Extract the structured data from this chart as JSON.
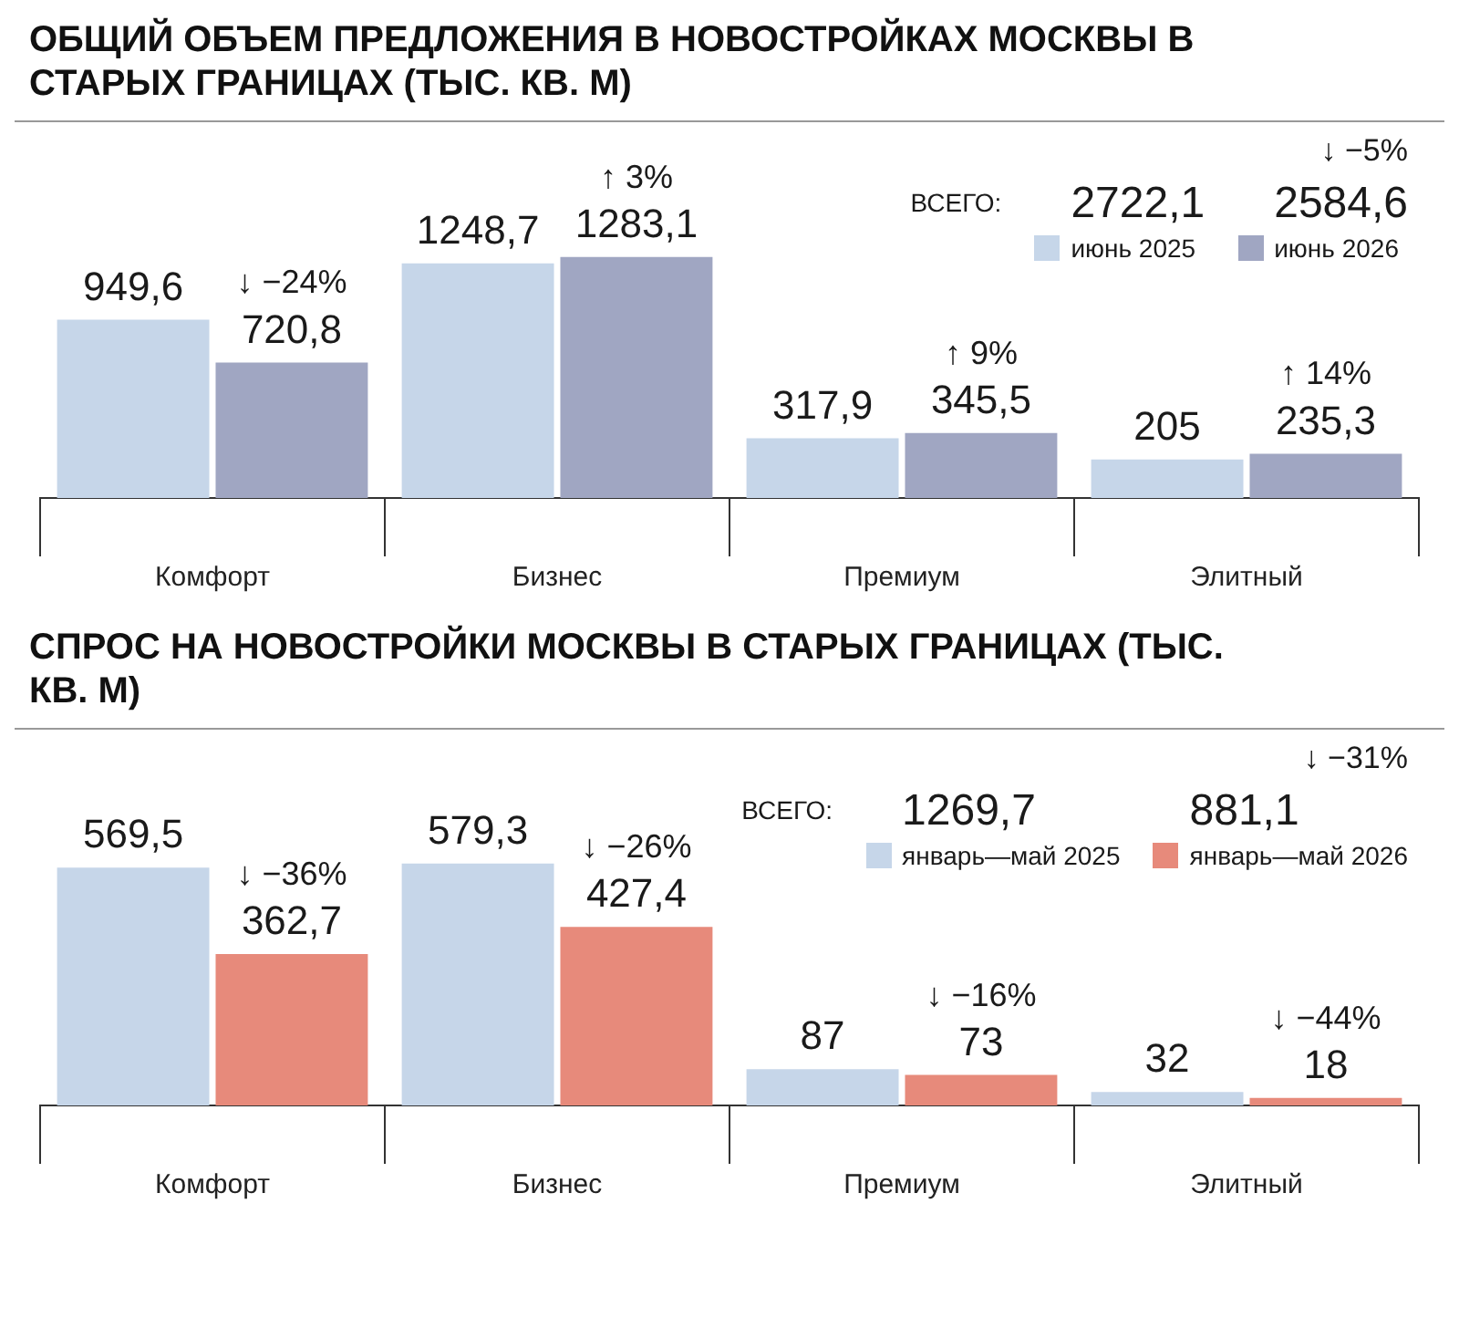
{
  "chart_data": [
    {
      "type": "bar",
      "title": "ОБЩИЙ ОБЪЕМ ПРЕДЛОЖЕНИЯ В НОВОСТРОЙКАХ МОСКВЫ В СТАРЫХ ГРАНИЦАХ (ТЫС. КВ. М)",
      "categories": [
        "Комфорт",
        "Бизнес",
        "Премиум",
        "Элитный"
      ],
      "series": [
        {
          "name": "июнь 2025",
          "color": "#c6d6e9",
          "values": [
            949.6,
            1248.7,
            317.9,
            205
          ],
          "value_labels": [
            "949,6",
            "1248,7",
            "317,9",
            "205"
          ]
        },
        {
          "name": "июнь 2026",
          "color": "#a0a6c2",
          "values": [
            720.8,
            1283.1,
            345.5,
            235.3
          ],
          "value_labels": [
            "720,8",
            "1283,1",
            "345,5",
            "235,3"
          ]
        }
      ],
      "annotations": [
        "ВСЕГО:",
        "2722,1",
        "2584,6",
        "↓ −5%",
        {
          "text": "↓ −24%",
          "x": "Комфорт",
          "y": 720.8
        },
        {
          "text": "↑ 3%",
          "x": "Бизнес",
          "y": 1283.1
        },
        {
          "text": "↑ 9%",
          "x": "Премиум",
          "y": 345.5
        },
        {
          "text": "↑ 14%",
          "x": "Элитный",
          "y": 235.3
        }
      ],
      "grid": false,
      "legend": "top right",
      "tick_labels": "x"
    },
    {
      "type": "bar",
      "title": "СПРОС НА НОВОСТРОЙКИ МОСКВЫ В СТАРЫХ ГРАНИЦАХ (ТЫС. КВ. М)",
      "categories": [
        "Комфорт",
        "Бизнес",
        "Премиум",
        "Элитный"
      ],
      "series": [
        {
          "name": "январь—май 2025",
          "color": "#c6d6e9",
          "values": [
            569.5,
            579.3,
            87,
            32
          ],
          "value_labels": [
            "569,5",
            "579,3",
            "87",
            "32"
          ]
        },
        {
          "name": "январь—май 2026",
          "color": "#e78a7b",
          "values": [
            362.7,
            427.4,
            73,
            18
          ],
          "value_labels": [
            "362,7",
            "427,4",
            "73",
            "18"
          ]
        }
      ],
      "annotations": [
        "ВСЕГО:",
        "1269,7",
        "881,1",
        "↓ −31%",
        {
          "text": "↓ −36%",
          "x": "Комфорт",
          "y": 362.7
        },
        {
          "text": "↓ −26%",
          "x": "Бизнес",
          "y": 427.4
        },
        {
          "text": "↓ −16%",
          "x": "Премиум",
          "y": 73
        },
        {
          "text": "↓ −44%",
          "x": "Элитный",
          "y": 18
        }
      ],
      "grid": false,
      "legend": "top right",
      "tick_labels": "x"
    }
  ]
}
